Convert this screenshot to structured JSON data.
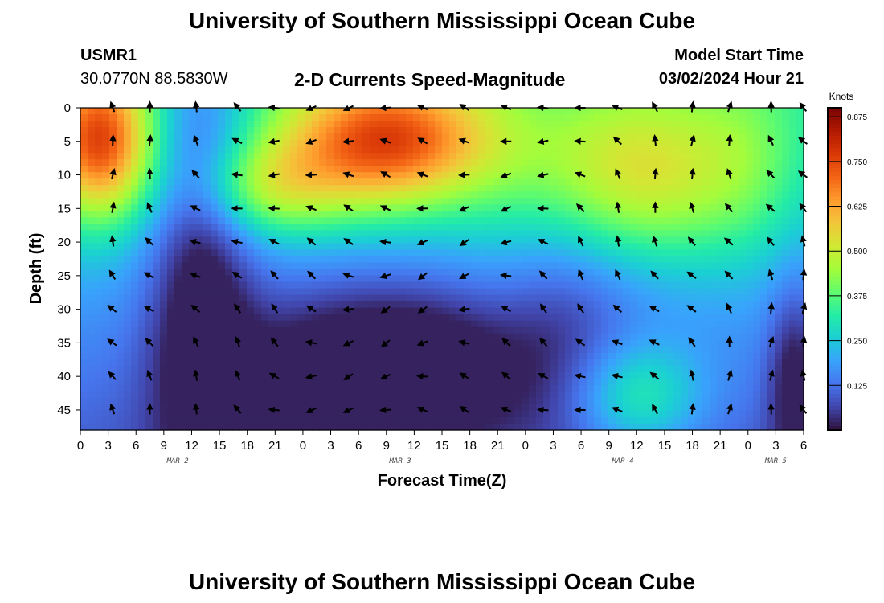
{
  "header": {
    "main_title": "University of Southern Mississippi Ocean Cube",
    "station_id": "USMR1",
    "coordinates": "30.0770N  88.5830W",
    "chart_title": "2-D Currents Speed-Magnitude",
    "model_label": "Model Start Time",
    "model_start": "03/02/2024 Hour 21",
    "footer_title": "University of Southern Mississippi Ocean Cube"
  },
  "chart_data": {
    "type": "heatmap",
    "title": "2-D Currents Speed-Magnitude",
    "xlabel": "Forecast Time(Z)",
    "ylabel": "Depth (ft)",
    "x_tick_labels": [
      "0",
      "3",
      "6",
      "9",
      "12",
      "15",
      "18",
      "21",
      "0",
      "3",
      "6",
      "9",
      "12",
      "15",
      "18",
      "21",
      "0",
      "3",
      "6",
      "9",
      "12",
      "15",
      "18",
      "21",
      "0",
      "3",
      "6"
    ],
    "x_range_hours": [
      0,
      78
    ],
    "day_labels": [
      {
        "label": "MAR 2",
        "hour": 10.5
      },
      {
        "label": "MAR 3",
        "hour": 34.5
      },
      {
        "label": "MAR 4",
        "hour": 58.5
      },
      {
        "label": "MAR 5",
        "hour": 75
      }
    ],
    "y_ticks": [
      0,
      5,
      10,
      15,
      20,
      25,
      30,
      35,
      40,
      45
    ],
    "y_range_ft": [
      0,
      48
    ],
    "colorbar": {
      "unit": "Knots",
      "range": [
        0.0,
        0.9
      ],
      "tick_labels": [
        "0.875",
        "0.750",
        "0.625",
        "0.500",
        "0.375",
        "0.250",
        "0.125"
      ],
      "tick_values": [
        0.875,
        0.75,
        0.625,
        0.5,
        0.375,
        0.25,
        0.125
      ]
    },
    "colormap": [
      "#30123b",
      "#4145ab",
      "#4675ed",
      "#39a2fc",
      "#1bcfd4",
      "#24eca6",
      "#61fc6c",
      "#a4fc3b",
      "#d1e834",
      "#f3c63a",
      "#fe9b2d",
      "#f36315",
      "#d93806",
      "#b11901",
      "#7a0402"
    ],
    "vector_times_h": [
      3.5,
      7.5,
      12.5,
      17,
      21,
      25,
      29,
      33,
      37,
      41.5,
      46,
      50,
      54,
      58,
      62,
      66,
      70,
      74.5,
      78
    ],
    "vector_depths_ft": [
      0,
      5,
      10,
      15,
      20,
      25,
      30,
      35,
      40,
      45
    ],
    "speed_model_note": "Speed field (knots) sampled over hours 0–78 and depth 0–48 ft"
  }
}
